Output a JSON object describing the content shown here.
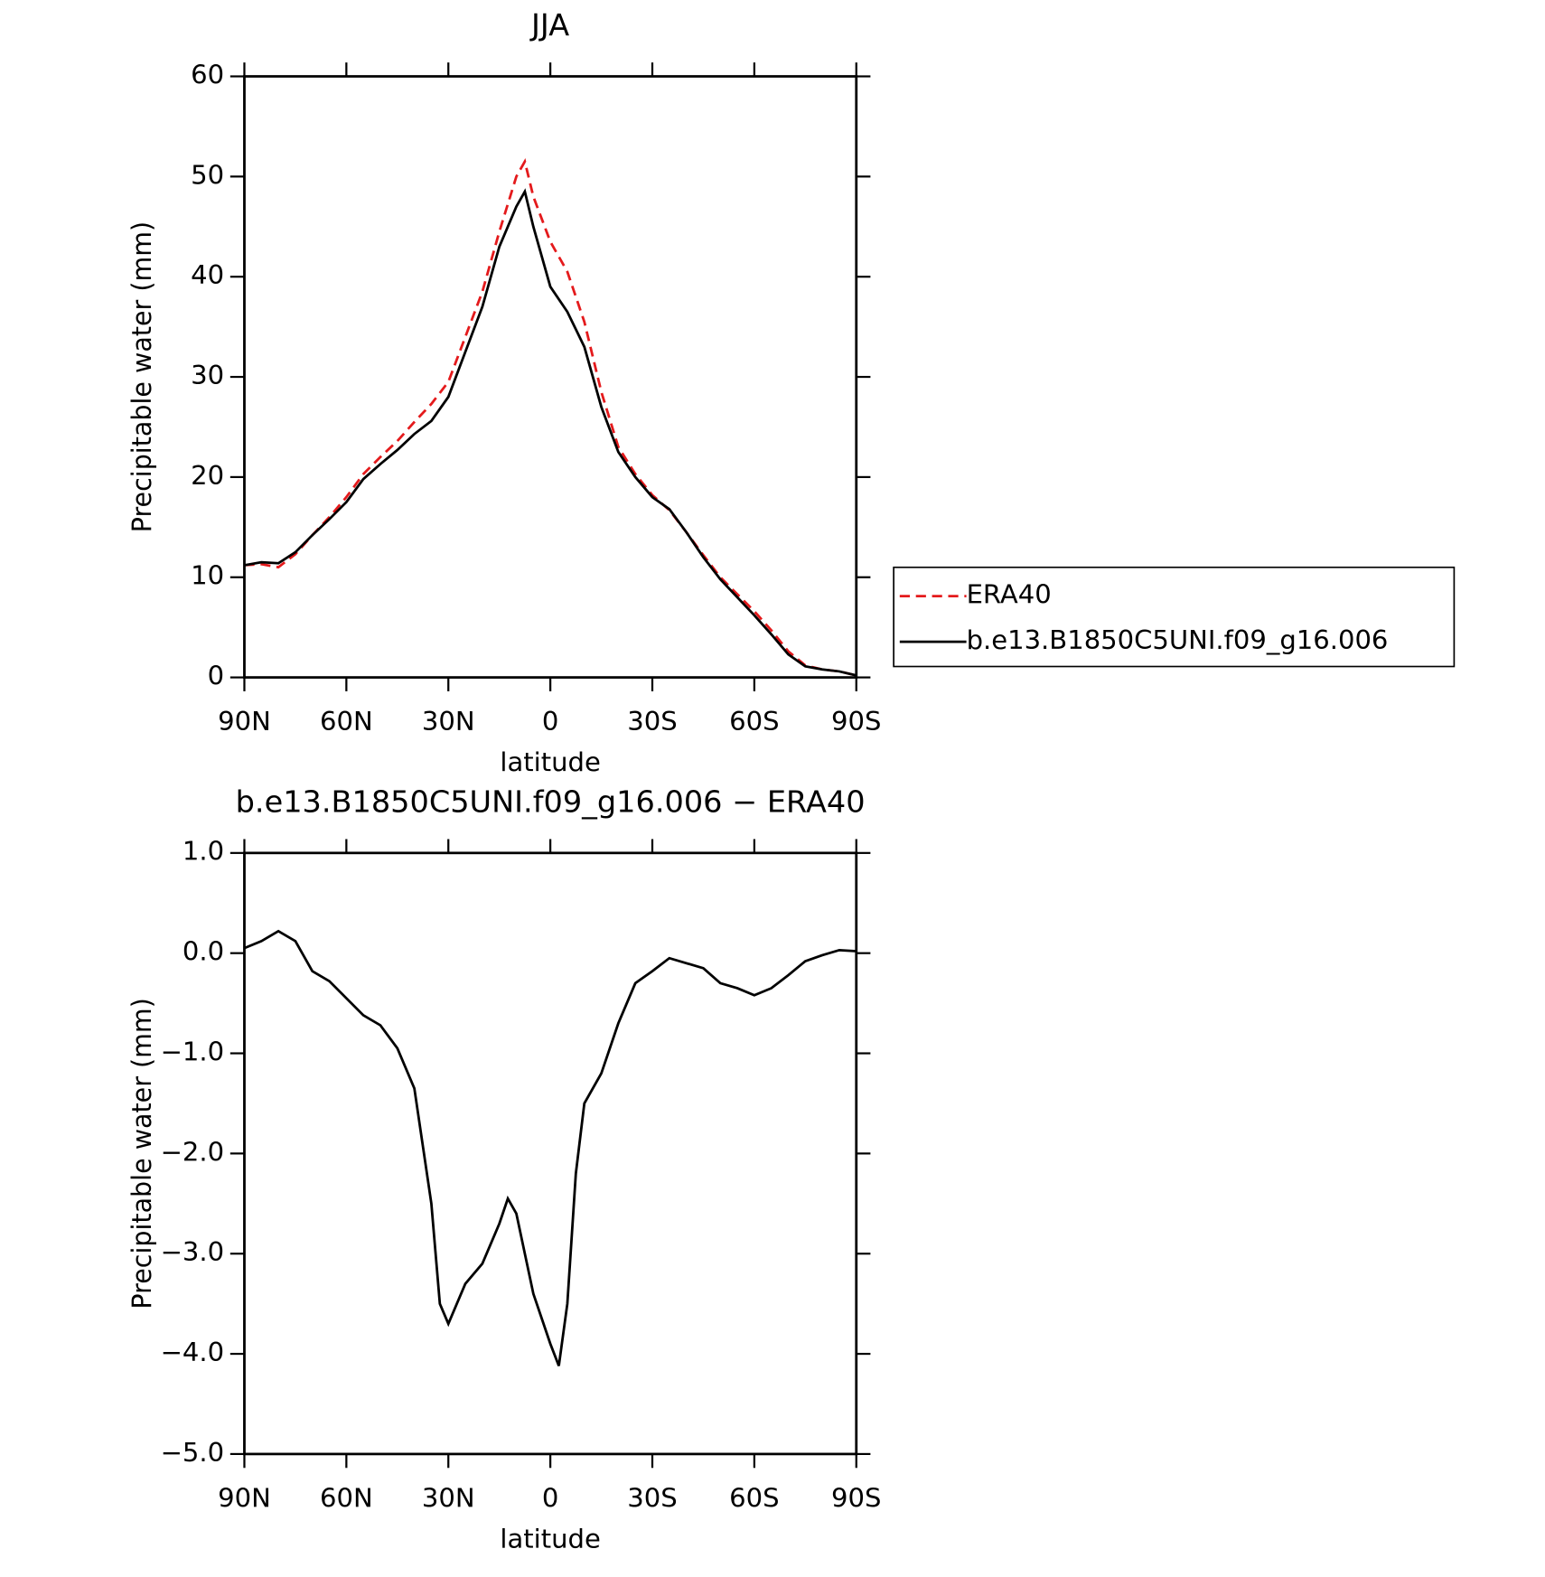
{
  "chart_data": [
    {
      "type": "line",
      "title": "JJA",
      "xlabel": "latitude",
      "ylabel": "Precipitable water (mm)",
      "x": [
        90,
        85,
        80,
        75,
        70,
        65,
        60,
        55,
        50,
        45,
        40,
        35,
        30,
        25,
        20,
        15,
        10,
        7.5,
        5,
        0,
        -5,
        -10,
        -15,
        -20,
        -25,
        -30,
        -35,
        -40,
        -45,
        -50,
        -55,
        -60,
        -65,
        -70,
        -75,
        -80,
        -85,
        -90
      ],
      "series": [
        {
          "name": "ERA40",
          "color": "#e41a1c",
          "dash": true,
          "values": [
            11.2,
            11.3,
            11.0,
            12.3,
            14.2,
            16.0,
            18.0,
            20.3,
            22.0,
            23.6,
            25.5,
            27.3,
            29.5,
            34.0,
            38.5,
            44.5,
            50.0,
            51.5,
            48.0,
            43.5,
            40.5,
            35.5,
            28.5,
            23.0,
            20.3,
            18.2,
            16.7,
            14.5,
            12.2,
            10.0,
            8.3,
            6.6,
            4.7,
            2.6,
            1.2,
            0.8,
            0.6,
            0.2
          ]
        },
        {
          "name": "b.e13.B1850C5UNI.f09_g16.006",
          "color": "#000000",
          "dash": false,
          "values": [
            11.2,
            11.5,
            11.4,
            12.5,
            14.2,
            15.8,
            17.5,
            19.8,
            21.3,
            22.7,
            24.3,
            25.6,
            28.0,
            32.5,
            37.0,
            43.0,
            47.0,
            48.5,
            45.0,
            39.0,
            36.5,
            33.0,
            27.0,
            22.5,
            20.0,
            18.0,
            16.8,
            14.5,
            12.0,
            9.8,
            8.0,
            6.2,
            4.3,
            2.3,
            1.1,
            0.8,
            0.6,
            0.2
          ]
        }
      ],
      "xlim": [
        90,
        -90
      ],
      "xticks": [
        {
          "value": 90,
          "label": "90N"
        },
        {
          "value": 60,
          "label": "60N"
        },
        {
          "value": 30,
          "label": "30N"
        },
        0,
        {
          "value": -30,
          "label": "30S"
        },
        {
          "value": -60,
          "label": "60S"
        },
        {
          "value": -90,
          "label": "90S"
        }
      ],
      "ylim": [
        0,
        60
      ],
      "yticks": [
        0,
        10,
        20,
        30,
        40,
        50,
        60
      ],
      "legend": "right"
    },
    {
      "type": "line",
      "title": "b.e13.B1850C5UNI.f09_g16.006 − ERA40",
      "xlabel": "latitude",
      "ylabel": "Precipitable water (mm)",
      "x": [
        90,
        85,
        80,
        75,
        70,
        65,
        60,
        55,
        50,
        45,
        40,
        35,
        32.5,
        30,
        25,
        20,
        15,
        12.5,
        10,
        5,
        0,
        -2.5,
        -5,
        -7.5,
        -10,
        -15,
        -20,
        -25,
        -30,
        -35,
        -40,
        -45,
        -50,
        -55,
        -60,
        -65,
        -70,
        -75,
        -80,
        -85,
        -90
      ],
      "series": [
        {
          "color": "#000000",
          "dash": false,
          "values": [
            0.05,
            0.12,
            0.22,
            0.12,
            -0.18,
            -0.28,
            -0.45,
            -0.62,
            -0.72,
            -0.95,
            -1.35,
            -2.5,
            -3.5,
            -3.7,
            -3.3,
            -3.1,
            -2.7,
            -2.45,
            -2.6,
            -3.4,
            -3.9,
            -4.12,
            -3.5,
            -2.2,
            -1.5,
            -1.2,
            -0.7,
            -0.3,
            -0.18,
            -0.05,
            -0.1,
            -0.15,
            -0.3,
            -0.35,
            -0.42,
            -0.35,
            -0.22,
            -0.08,
            -0.02,
            0.03,
            0.02
          ]
        }
      ],
      "xlim": [
        90,
        -90
      ],
      "xticks": [
        {
          "value": 90,
          "label": "90N"
        },
        {
          "value": 60,
          "label": "60N"
        },
        {
          "value": 30,
          "label": "30N"
        },
        0,
        {
          "value": -30,
          "label": "30S"
        },
        {
          "value": -60,
          "label": "60S"
        },
        {
          "value": -90,
          "label": "90S"
        }
      ],
      "ylim": [
        -5,
        1
      ],
      "yticks": [
        {
          "value": -5,
          "label": "−5.0"
        },
        {
          "value": -4,
          "label": "−4.0"
        },
        {
          "value": -3,
          "label": "−3.0"
        },
        {
          "value": -2,
          "label": "−2.0"
        },
        {
          "value": -1,
          "label": "−1.0"
        },
        {
          "value": 0,
          "label": "0.0"
        },
        {
          "value": 1,
          "label": "1.0"
        }
      ]
    }
  ]
}
